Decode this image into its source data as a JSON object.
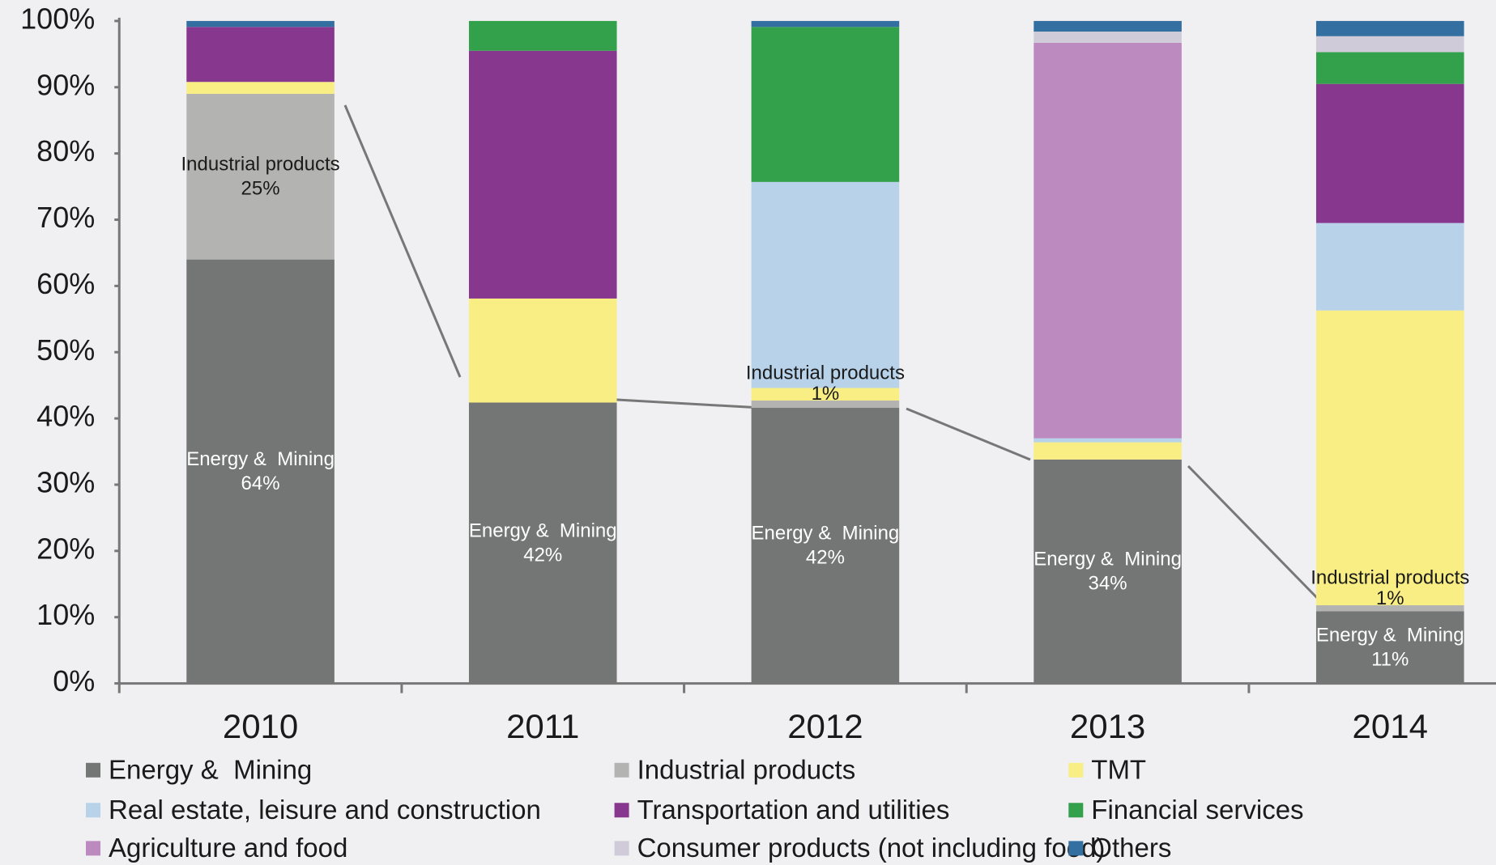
{
  "chart_data": {
    "type": "stacked_bar",
    "categories": [
      "2010",
      "2011",
      "2012",
      "2013",
      "2014"
    ],
    "ylim": [
      0,
      100
    ],
    "yticks": [
      {
        "value": 0,
        "label": "0%"
      },
      {
        "value": 10,
        "label": "10%"
      },
      {
        "value": 20,
        "label": "20%"
      },
      {
        "value": 30,
        "label": "30%"
      },
      {
        "value": 40,
        "label": "40%"
      },
      {
        "value": 50,
        "label": "50%"
      },
      {
        "value": 60,
        "label": "60%"
      },
      {
        "value": 70,
        "label": "70%"
      },
      {
        "value": 80,
        "label": "80%"
      },
      {
        "value": 90,
        "label": "90%"
      },
      {
        "value": 100,
        "label": "100%"
      }
    ],
    "series": [
      {
        "name": "Energy &  Mining",
        "color": "#747676",
        "values": [
          64,
          42.4,
          41.6,
          33.8,
          10.9
        ],
        "value_labels": [
          "64%",
          "42%",
          "42%",
          "34%",
          "11%"
        ]
      },
      {
        "name": "Industrial products",
        "color": "#b3b4b2",
        "values": [
          25,
          0,
          1.1,
          0,
          0.9
        ],
        "value_labels": [
          "25%",
          null,
          "1%",
          null,
          "1%"
        ]
      },
      {
        "name": "TMT",
        "color": "#f8ee84",
        "values": [
          1.8,
          15.7,
          1.9,
          2.6,
          44.5
        ]
      },
      {
        "name": "Real estate, leisure and construction",
        "color": "#b8d2ea",
        "values": [
          0,
          0,
          31.1,
          0.6,
          13.2
        ]
      },
      {
        "name": "Transportation and utilities",
        "color": "#88378f",
        "values": [
          8.3,
          37.4,
          0,
          0,
          21.0
        ]
      },
      {
        "name": "Financial services",
        "color": "#33a04c",
        "values": [
          0,
          4.5,
          23.4,
          0,
          4.8
        ]
      },
      {
        "name": "Agriculture and food",
        "color": "#bc8abf",
        "values": [
          0,
          0,
          0,
          59.7,
          0
        ]
      },
      {
        "name": "Consumer products (not including food)",
        "color": "#cfcbd8",
        "values": [
          0,
          0,
          0,
          1.7,
          2.4
        ]
      },
      {
        "name": "Others",
        "color": "#336fa0",
        "values": [
          0.9,
          0,
          0.9,
          1.6,
          2.3
        ]
      }
    ]
  }
}
